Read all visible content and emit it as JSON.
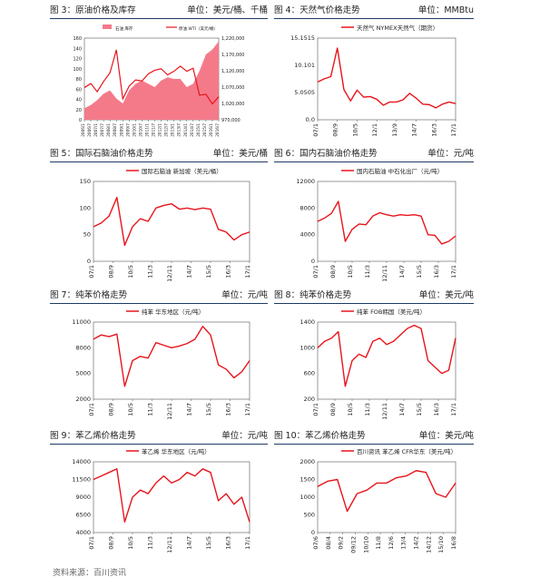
{
  "source": "资料来源：百川资讯",
  "figures": [
    {
      "caption": "图 3：原油价格及库存",
      "unit": "单位：美元/桶、千桶"
    },
    {
      "caption": "图 4：天然气价格走势",
      "unit": "单位：MMBtu"
    },
    {
      "caption": "图 5：国际石脑油价格走势",
      "unit": "单位：美元/桶"
    },
    {
      "caption": "图 6：国内石脑油价格走势",
      "unit": "单位：元/吨"
    },
    {
      "caption": "图 7：纯苯价格走势",
      "unit": "单位：元/吨"
    },
    {
      "caption": "图 8：纯苯价格走势",
      "unit": "单位：美元/吨"
    },
    {
      "caption": "图 9：苯乙烯价格走势",
      "unit": "单位：元/吨"
    },
    {
      "caption": "图 10：苯乙烯价格走势",
      "unit": "单位：美元/吨"
    }
  ],
  "colors": {
    "line": "#e8141b",
    "area": "#f47a8a",
    "rule": "#1f3a66",
    "axis": "#555555"
  },
  "chart_data": [
    {
      "type": "area",
      "legend": [
        "石油 库存",
        "原油 WTI（美元/桶）"
      ],
      "x": [
        "2006/1",
        "2006/7",
        "2007/1",
        "2007/7",
        "2008/1",
        "2008/7",
        "2009/1",
        "2009/7",
        "2010/1",
        "2010/7",
        "2011/1",
        "2011/7",
        "2012/1",
        "2012/7",
        "2013/1",
        "2013/7",
        "2014/1",
        "2014/7",
        "2015/1",
        "2015/7",
        "2016/1",
        "2016/7"
      ],
      "x_ticks": [
        "2006/1",
        "2006/7",
        "2007/1",
        "2007/7",
        "2008/1",
        "2008/7",
        "2009/1",
        "2009/7",
        "2010/1",
        "2010/7",
        "2011/1",
        "2011/7",
        "2012/1",
        "2012/7",
        "2013/1",
        "2013/7",
        "2014/1",
        "2014/7",
        "2015/1",
        "2015/7",
        "2016/1",
        "2016/7"
      ],
      "y_ticks": [
        "0",
        "20",
        "40",
        "60",
        "80",
        "100",
        "120",
        "140",
        "160"
      ],
      "y2_ticks": [
        "970,000",
        "1,020,000",
        "1,070,000",
        "1,120,000",
        "1,170,000",
        "1,220,000"
      ],
      "ylim": [
        0,
        160
      ],
      "y2lim": [
        970000,
        1220000
      ],
      "series": [
        {
          "name": "石油 库存",
          "axis": "right",
          "values": [
            1005000,
            1015000,
            1030000,
            1050000,
            1060000,
            1035000,
            1020000,
            1060000,
            1080000,
            1090000,
            1080000,
            1070000,
            1090000,
            1100000,
            1095000,
            1095000,
            1070000,
            1080000,
            1120000,
            1170000,
            1185000,
            1210000
          ]
        },
        {
          "name": "原油 WTI（美元/桶）",
          "axis": "left",
          "values": [
            63,
            71,
            55,
            75,
            92,
            137,
            41,
            66,
            78,
            76,
            90,
            97,
            100,
            88,
            95,
            105,
            95,
            101,
            48,
            50,
            31,
            45
          ]
        }
      ]
    },
    {
      "type": "line",
      "legend": [
        "天然气 NYMEX天然气（期货）"
      ],
      "x": [
        "07/1",
        "07/7",
        "08/1",
        "08/7",
        "09/1",
        "09/7",
        "10/1",
        "10/7",
        "11/1",
        "11/7",
        "12/1",
        "12/7",
        "13/1",
        "13/7",
        "14/1",
        "14/7",
        "15/1",
        "15/7",
        "16/1",
        "16/7",
        "17/1",
        "17/7"
      ],
      "x_ticks": [
        "07/1",
        "08/9",
        "10/5",
        "12/1",
        "13/9",
        "14/7",
        "16/3",
        "17/1"
      ],
      "y_ticks": [
        "0.0",
        "5.0505",
        "10.101",
        "15.1515"
      ],
      "ylim": [
        0,
        15.1515
      ],
      "series": [
        {
          "name": "天然气 NYMEX天然气（期货）",
          "values": [
            7.0,
            7.6,
            8.0,
            13.3,
            5.6,
            3.5,
            5.5,
            4.2,
            4.3,
            3.8,
            2.7,
            3.3,
            3.3,
            3.7,
            4.9,
            4.0,
            2.9,
            2.8,
            2.2,
            2.9,
            3.3,
            3.0
          ]
        }
      ]
    },
    {
      "type": "line",
      "legend": [
        "国际石脑油 新加坡（美元/桶）"
      ],
      "x": [
        "07/1",
        "07/7",
        "08/1",
        "08/7",
        "09/1",
        "09/7",
        "10/1",
        "10/7",
        "11/1",
        "11/7",
        "12/1",
        "12/7",
        "13/1",
        "13/7",
        "14/1",
        "14/7",
        "15/1",
        "15/7",
        "16/1",
        "16/7",
        "17/1"
      ],
      "x_ticks": [
        "07/1",
        "08/9",
        "10/5",
        "11/3",
        "12/11",
        "14/7",
        "15/5",
        "16/3",
        "17/1"
      ],
      "y_ticks": [
        "0",
        "50",
        "100",
        "150"
      ],
      "ylim": [
        0,
        150
      ],
      "series": [
        {
          "name": "国际石脑油 新加坡（美元/桶）",
          "values": [
            65,
            72,
            85,
            120,
            30,
            65,
            80,
            75,
            100,
            105,
            108,
            98,
            100,
            97,
            100,
            98,
            60,
            55,
            40,
            50,
            55
          ]
        }
      ]
    },
    {
      "type": "line",
      "legend": [
        "国内石脑油 中石化出厂（元/吨）"
      ],
      "x": [
        "07/1",
        "07/7",
        "08/1",
        "08/7",
        "09/1",
        "09/7",
        "10/1",
        "10/7",
        "11/1",
        "11/7",
        "12/1",
        "12/7",
        "13/1",
        "13/7",
        "14/1",
        "14/7",
        "15/1",
        "15/7",
        "16/1",
        "16/7",
        "17/1"
      ],
      "x_ticks": [
        "07/1",
        "08/9",
        "10/5",
        "11/3",
        "12/11",
        "14/7",
        "15/5",
        "16/3",
        "17/1"
      ],
      "y_ticks": [
        "0",
        "4000",
        "8000",
        "12000"
      ],
      "ylim": [
        0,
        12000
      ],
      "series": [
        {
          "name": "国内石脑油 中石化出厂（元/吨）",
          "values": [
            6000,
            6500,
            7200,
            9000,
            3000,
            4800,
            5600,
            5500,
            6800,
            7300,
            7000,
            6800,
            7000,
            6900,
            7000,
            6800,
            4000,
            3900,
            2600,
            3000,
            3800
          ]
        }
      ]
    },
    {
      "type": "line",
      "legend": [
        "纯苯 华东地区（元/吨）"
      ],
      "x": [
        "07/1",
        "07/7",
        "08/1",
        "08/7",
        "09/1",
        "09/7",
        "10/1",
        "10/7",
        "11/1",
        "11/7",
        "12/1",
        "12/7",
        "13/1",
        "13/7",
        "14/1",
        "14/7",
        "15/1",
        "15/7",
        "16/1",
        "16/7",
        "17/1"
      ],
      "x_ticks": [
        "07/1",
        "08/9",
        "10/5",
        "11/3",
        "12/11",
        "14/7",
        "15/5",
        "16/3",
        "17/1"
      ],
      "y_ticks": [
        "2000",
        "5000",
        "8000",
        "11000"
      ],
      "ylim": [
        2000,
        11000
      ],
      "series": [
        {
          "name": "纯苯 华东地区（元/吨）",
          "values": [
            9000,
            9500,
            9300,
            9600,
            3500,
            6500,
            7000,
            6800,
            8600,
            8300,
            8000,
            8200,
            8500,
            9000,
            10500,
            9500,
            6000,
            5500,
            4500,
            5200,
            6500
          ]
        }
      ]
    },
    {
      "type": "line",
      "legend": [
        "纯苯 FOB韩国（美元/吨）"
      ],
      "x": [
        "07/1",
        "07/7",
        "08/1",
        "08/7",
        "09/1",
        "09/7",
        "10/1",
        "10/7",
        "11/1",
        "11/7",
        "12/1",
        "12/7",
        "13/1",
        "13/7",
        "14/1",
        "14/7",
        "15/1",
        "15/7",
        "16/1",
        "16/7",
        "17/1"
      ],
      "x_ticks": [
        "07/1",
        "08/9",
        "10/5",
        "11/3",
        "12/11",
        "14/7",
        "15/5",
        "16/3",
        "17/1"
      ],
      "y_ticks": [
        "200",
        "600",
        "1000",
        "1400"
      ],
      "ylim": [
        200,
        1400
      ],
      "series": [
        {
          "name": "纯苯 FOB韩国（美元/吨）",
          "values": [
            1000,
            1100,
            1150,
            1250,
            400,
            800,
            900,
            850,
            1100,
            1150,
            1050,
            1100,
            1200,
            1300,
            1350,
            1300,
            800,
            700,
            600,
            650,
            1150
          ]
        }
      ]
    },
    {
      "type": "line",
      "legend": [
        "苯乙烯 华东地区（元/吨）"
      ],
      "x": [
        "07/1",
        "07/7",
        "08/1",
        "08/7",
        "09/1",
        "09/7",
        "10/1",
        "10/7",
        "11/1",
        "11/7",
        "12/1",
        "12/7",
        "13/1",
        "13/7",
        "14/1",
        "14/7",
        "15/1",
        "15/7",
        "16/1",
        "16/7",
        "17/1"
      ],
      "x_ticks": [
        "07/1",
        "08/9",
        "10/5",
        "11/3",
        "12/11",
        "14/7",
        "15/5",
        "16/3",
        "17/1"
      ],
      "y_ticks": [
        "4000",
        "6500",
        "9000",
        "11500",
        "14000"
      ],
      "ylim": [
        4000,
        14000
      ],
      "series": [
        {
          "name": "苯乙烯 华东地区（元/吨）",
          "values": [
            11500,
            12000,
            12500,
            13000,
            5500,
            9000,
            10000,
            9500,
            11000,
            12000,
            11000,
            11500,
            12500,
            12000,
            13000,
            12500,
            8500,
            9500,
            8000,
            9000,
            5500
          ]
        }
      ]
    },
    {
      "type": "line",
      "legend": [
        "百川资讯 苯乙烯 CFR华东（美元/吨）"
      ],
      "x": [
        "07/6",
        "08/1",
        "08/4",
        "09/2",
        "09/10",
        "10/7",
        "11/3",
        "11/12",
        "12/8",
        "13/4",
        "13/12",
        "14/8",
        "15/4",
        "15/12",
        "16/8"
      ],
      "x_ticks": [
        "07/6",
        "08/4",
        "09/2",
        "09/12",
        "10/10",
        "11/8",
        "12/6",
        "13/4",
        "14/2",
        "14/12",
        "15/10",
        "16/8"
      ],
      "y_ticks": [
        "0",
        "500",
        "1000",
        "1500",
        "2000"
      ],
      "ylim": [
        0,
        2000
      ],
      "series": [
        {
          "name": "百川资讯 苯乙烯 CFR华东（美元/吨）",
          "values": [
            1300,
            1450,
            1500,
            600,
            1100,
            1200,
            1400,
            1400,
            1550,
            1600,
            1750,
            1700,
            1100,
            1000,
            1400
          ]
        }
      ]
    }
  ]
}
